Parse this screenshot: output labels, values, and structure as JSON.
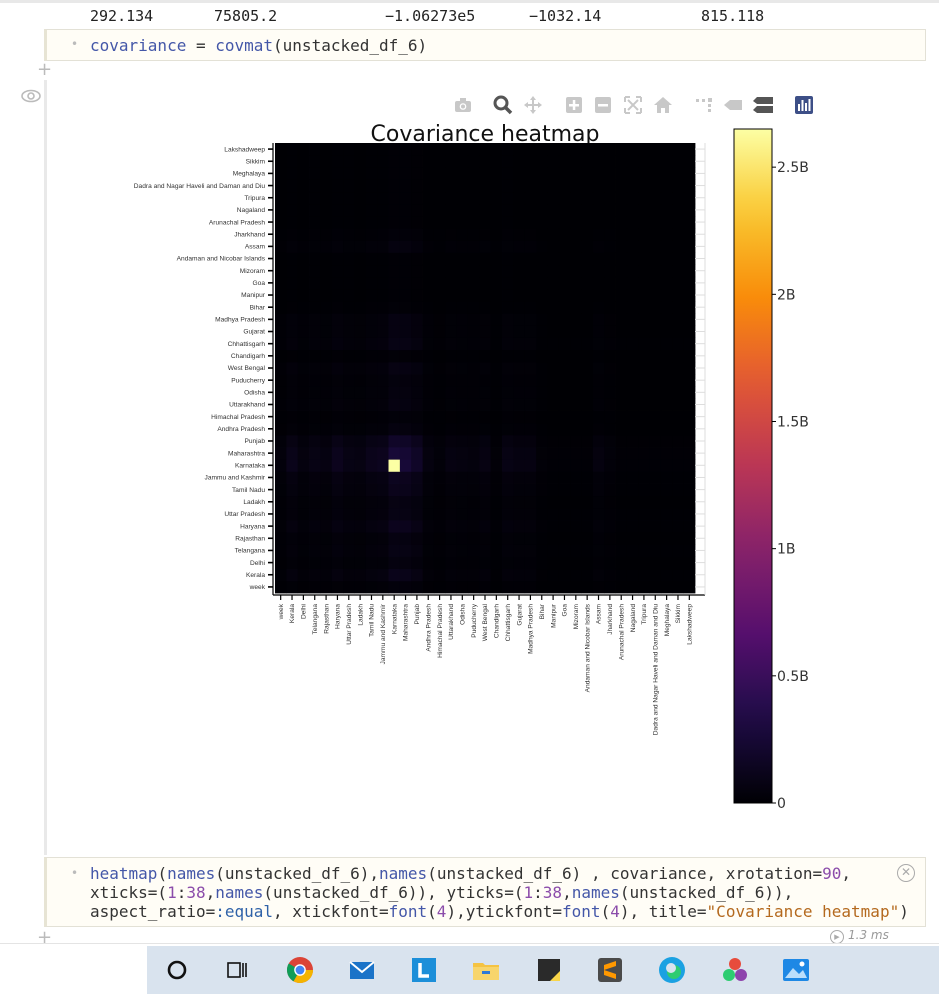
{
  "output_row": {
    "values": [
      "292.134",
      "75805.2",
      "−1.06273e5",
      "−1032.14",
      "815.118"
    ]
  },
  "cell1": {
    "code_parts": [
      "covariance",
      " = ",
      "covmat",
      "(unstacked_df_6)"
    ]
  },
  "cell2": {
    "line1": [
      "heatmap",
      "(",
      "names",
      "(unstacked_df_6),",
      "names",
      "(unstacked_df_6) , covariance, xrotation=",
      "90",
      ","
    ],
    "line2": [
      "xticks=(",
      "1",
      ":",
      "38",
      ",",
      "names",
      "(unstacked_df_6)), yticks=(",
      "1",
      ":",
      "38",
      ",",
      "names",
      "(unstacked_df_6)),"
    ],
    "line3": [
      "aspect_ratio=",
      ":equal",
      ", xtickfont=",
      "font",
      "(",
      "4",
      "),ytickfont=",
      "font",
      "(",
      "4",
      "), title=",
      "\"Covariance heatmap\"",
      ")"
    ]
  },
  "runtime": "1.3 ms",
  "modebar_icons": [
    "camera-icon",
    "zoom-icon",
    "pan-icon",
    "zoom-in-icon",
    "zoom-out-icon",
    "autoscale-icon",
    "home-icon",
    "spike-lines-icon",
    "hover-closest-icon",
    "hover-compare-icon",
    "plotly-logo-icon"
  ],
  "taskbar_icons": [
    "cortana-icon",
    "task-view-icon",
    "chrome-icon",
    "mail-icon",
    "l-app-icon",
    "file-explorer-icon",
    "sticky-notes-icon",
    "sublime-text-icon",
    "edge-icon",
    "paint-3d-icon",
    "photos-icon"
  ],
  "chart_data": {
    "type": "heatmap",
    "title": "Covariance heatmap",
    "labels": [
      "week",
      "Kerala",
      "Delhi",
      "Telangana",
      "Rajasthan",
      "Haryana",
      "Uttar Pradesh",
      "Ladakh",
      "Tamil Nadu",
      "Jammu and Kashmir",
      "Karnataka",
      "Maharashtra",
      "Punjab",
      "Andhra Pradesh",
      "Himachal Pradesh",
      "Uttarakhand",
      "Odisha",
      "Puducherry",
      "West Bengal",
      "Chandigarh",
      "Chhattisgarh",
      "Gujarat",
      "Madhya Pradesh",
      "Bihar",
      "Manipur",
      "Goa",
      "Mizoram",
      "Andaman and Nicobar Islands",
      "Assam",
      "Jharkhand",
      "Arunachal Pradesh",
      "Nagaland",
      "Tripura",
      "Dadra and Nagar Haveli and Daman and Diu",
      "Meghalaya",
      "Sikkim",
      "Lakshadweep"
    ],
    "colorbar": {
      "min": 0,
      "max": 2650000000.0,
      "ticks": [
        {
          "value": 0,
          "label": "0"
        },
        {
          "value": 500000000,
          "label": "0.5B"
        },
        {
          "value": 1000000000,
          "label": "1B"
        },
        {
          "value": 1500000000,
          "label": "1.5B"
        },
        {
          "value": 2000000000,
          "label": "2B"
        },
        {
          "value": 2500000000,
          "label": "2.5B"
        }
      ],
      "colorscale": "inferno"
    },
    "row_scale": [
      0.04,
      0.12,
      0.06,
      0.09,
      0.07,
      0.14,
      0.09,
      0.08,
      0.13,
      0.15,
      0.3,
      0.28,
      0.2,
      0.06,
      0.03,
      0.07,
      0.06,
      0.05,
      0.08,
      0.02,
      0.09,
      0.07,
      0.07,
      0.02,
      0.01,
      0.01,
      0.01,
      0.01,
      0.06,
      0.03,
      0.01,
      0.01,
      0.01,
      0.01,
      0.01,
      0.01,
      0.01
    ],
    "peak_value": 2650000000,
    "peak_at": [
      "Karnataka",
      "Karnataka"
    ]
  }
}
